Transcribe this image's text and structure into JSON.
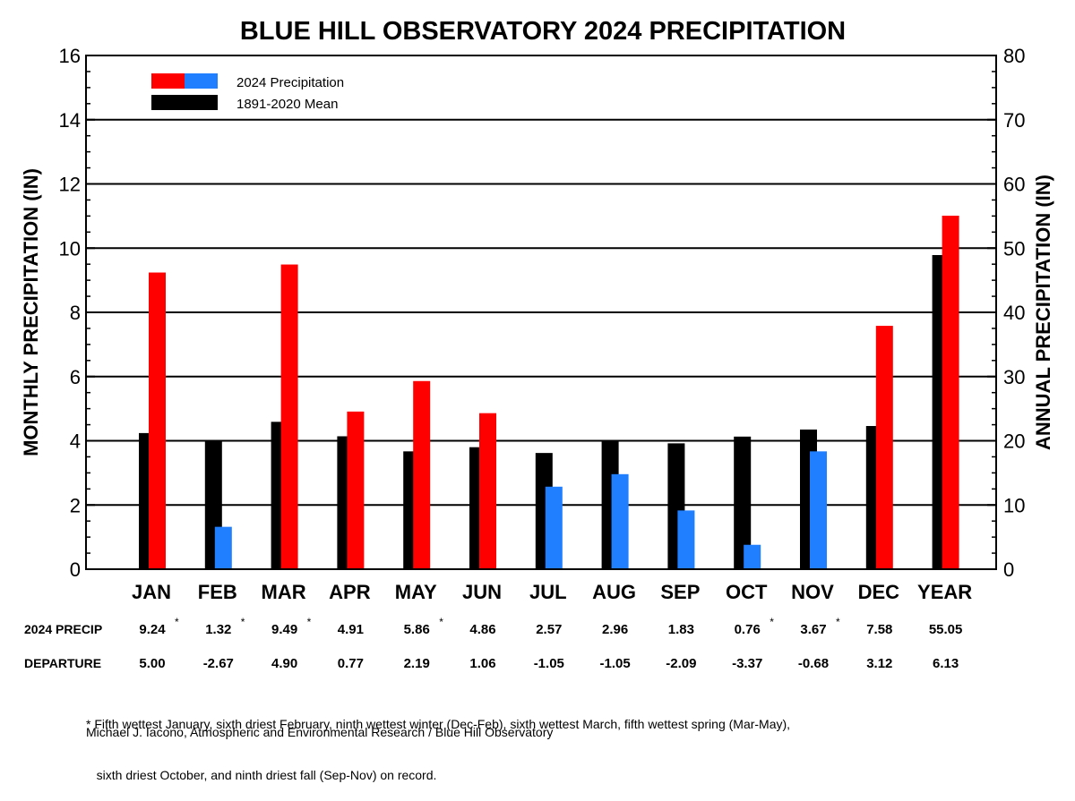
{
  "chart_data": {
    "type": "bar",
    "title": "BLUE HILL OBSERVATORY 2024 PRECIPITATION",
    "ylabel_left": "MONTHLY PRECIPITATION (IN)",
    "ylabel_right": "ANNUAL PRECIPITATION (IN)",
    "ylim_left": [
      0,
      16
    ],
    "ylim_right": [
      0,
      80
    ],
    "yticks_left": [
      "0",
      "2",
      "4",
      "6",
      "8",
      "10",
      "12",
      "14",
      "16"
    ],
    "yticks_right": [
      "0",
      "10",
      "20",
      "30",
      "40",
      "50",
      "60",
      "70",
      "80"
    ],
    "gridlines_left": [
      2,
      4,
      6,
      8,
      10,
      12,
      14
    ],
    "categories": [
      "JAN",
      "FEB",
      "MAR",
      "APR",
      "MAY",
      "JUN",
      "JUL",
      "AUG",
      "SEP",
      "OCT",
      "NOV",
      "DEC",
      "YEAR"
    ],
    "axis_for_category": [
      "left",
      "left",
      "left",
      "left",
      "left",
      "left",
      "left",
      "left",
      "left",
      "left",
      "left",
      "left",
      "right"
    ],
    "legend": {
      "position": "top-left",
      "entries": [
        {
          "label": "2024 Precipitation",
          "colors": [
            "#ff0000",
            "#1f7fff"
          ]
        },
        {
          "label": "1891-2020 Mean",
          "colors": [
            "#000000"
          ]
        }
      ]
    },
    "series": [
      {
        "name": "1891-2020 Mean",
        "values": [
          4.24,
          3.99,
          4.59,
          4.14,
          3.67,
          3.8,
          3.62,
          4.01,
          3.92,
          4.13,
          4.35,
          4.46,
          48.92
        ],
        "color": "#000000"
      },
      {
        "name": "2024 Precipitation",
        "values": [
          9.24,
          1.32,
          9.49,
          4.91,
          5.86,
          4.86,
          2.57,
          2.96,
          1.83,
          0.76,
          3.67,
          7.58,
          55.05
        ],
        "colors": [
          "#ff0000",
          "#1f7fff",
          "#ff0000",
          "#ff0000",
          "#ff0000",
          "#ff0000",
          "#1f7fff",
          "#1f7fff",
          "#1f7fff",
          "#1f7fff",
          "#1f7fff",
          "#ff0000",
          "#ff0000"
        ]
      }
    ],
    "colors": {
      "above": "#ff0000",
      "below": "#1f7fff",
      "mean": "#000000"
    }
  },
  "table": {
    "rows": [
      {
        "label": "2024 PRECIP",
        "cells": [
          "9.24",
          "1.32",
          "9.49",
          "4.91",
          "5.86",
          "4.86",
          "2.57",
          "2.96",
          "1.83",
          "0.76",
          "3.67",
          "7.58",
          "55.05"
        ],
        "stars": [
          true,
          true,
          true,
          false,
          true,
          false,
          false,
          false,
          false,
          true,
          true,
          false,
          false
        ]
      },
      {
        "label": "DEPARTURE",
        "cells": [
          "5.00",
          "-2.67",
          "4.90",
          "0.77",
          "2.19",
          "1.06",
          "-1.05",
          "-1.05",
          "-2.09",
          "-3.37",
          "-0.68",
          "3.12",
          "6.13"
        ],
        "stars": [
          false,
          false,
          false,
          false,
          false,
          false,
          false,
          false,
          false,
          false,
          false,
          false,
          false
        ]
      }
    ],
    "star_symbol": "*"
  },
  "footnote": {
    "line1": "* Fifth wettest January, sixth driest February, ninth wettest winter (Dec-Feb), sixth wettest March, fifth wettest spring (Mar-May),",
    "line2": "   sixth driest October, and ninth driest fall (Sep-Nov) on record."
  },
  "credit": "Michael J. Iacono, Atmospheric and Environmental Research / Blue Hill Observatory"
}
